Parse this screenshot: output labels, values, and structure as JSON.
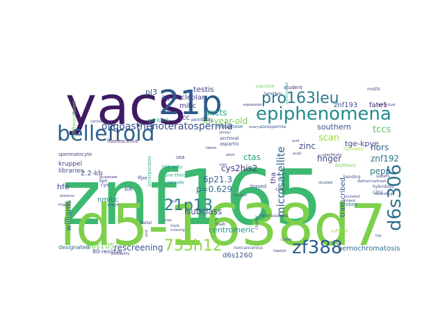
{
  "words": [
    {
      "text": "znf165",
      "color": "#3cb870"
    },
    {
      "text": "ld5-1638d7",
      "color": "#7ed04b"
    },
    {
      "text": "yacs",
      "color": "#3f1a63"
    },
    {
      "text": "21p",
      "color": "#2e5a8a"
    },
    {
      "text": "bellefroid",
      "color": "#2f5f8b"
    },
    {
      "text": "epiphenomena",
      "color": "#238b8d"
    },
    {
      "text": "pro163leu",
      "color": "#2a7a8e"
    },
    {
      "text": "d6s306",
      "color": "#2c6f8e"
    },
    {
      "text": "zf388",
      "color": "#2f5d8c"
    },
    {
      "text": "753h12",
      "color": "#8fd644"
    },
    {
      "text": "21p13",
      "color": "#2d7d8e"
    },
    {
      "text": "microsatellite",
      "color": "#31668e"
    },
    {
      "text": "oligoasthenoteratospermia",
      "color": "#3b4c8b"
    },
    {
      "text": "ag-nucleolar",
      "color": "#414487"
    },
    {
      "text": "testis",
      "color": "#3f4a8a"
    },
    {
      "text": "pl3",
      "color": "#3a538b"
    },
    {
      "text": "mibc",
      "color": "#472d7b"
    },
    {
      "text": "38-year-old",
      "color": "#74d055"
    },
    {
      "text": "ancts",
      "color": "#26a784"
    },
    {
      "text": "znf193",
      "color": "#3c4f8a"
    },
    {
      "text": "fate1",
      "color": "#482475"
    },
    {
      "text": "tccs",
      "color": "#57c665"
    },
    {
      "text": "tge-kpye",
      "color": "#3e4c8a"
    },
    {
      "text": "southern",
      "color": "#3b518b"
    },
    {
      "text": "scan",
      "color": "#98d83e"
    },
    {
      "text": "nors",
      "color": "#33638d"
    },
    {
      "text": "znf192",
      "color": "#2c738e"
    },
    {
      "text": "pepp",
      "color": "#29788e"
    },
    {
      "text": "finger",
      "color": "#3f4788"
    },
    {
      "text": "zinc",
      "color": "#3d4d8a"
    },
    {
      "text": "ctas",
      "color": "#2ba07d"
    },
    {
      "text": "cys2his2",
      "color": "#472f7d"
    },
    {
      "text": "6p21.3",
      "color": "#33638d"
    },
    {
      "text": "p=0.629",
      "color": "#2c718e"
    },
    {
      "text": "subclass",
      "color": "#3b518b"
    },
    {
      "text": "centromeric",
      "color": "#21908d"
    },
    {
      "text": "rescreening",
      "color": "#3b528b"
    },
    {
      "text": "d6s105",
      "color": "#70cf57"
    },
    {
      "text": "d6s1260",
      "color": "#3a548c"
    },
    {
      "text": "hemochromatosis",
      "color": "#2d708e"
    },
    {
      "text": "hfe",
      "color": "#3e4989"
    },
    {
      "text": "2.2-kb",
      "color": "#3b528b"
    },
    {
      "text": "williams",
      "color": "#2f6c8e"
    },
    {
      "text": "nmibc",
      "color": "#26818e"
    },
    {
      "text": "tha",
      "color": "#46327e"
    },
    {
      "text": "transcribed",
      "color": "#3b528b"
    },
    {
      "text": "tcc",
      "color": "#482878"
    },
    {
      "text": "kruppel",
      "color": "#453882"
    },
    {
      "text": "libraries",
      "color": "#3c4f8a"
    },
    {
      "text": "designated",
      "color": "#31688e"
    },
    {
      "text": "80-residue",
      "color": "#3e4a89"
    },
    {
      "text": "biased",
      "color": "#3e4989"
    },
    {
      "text": "cta",
      "color": "#453781"
    },
    {
      "text": "archival",
      "color": "#38598c"
    },
    {
      "text": "metaphase",
      "color": "#31678e"
    },
    {
      "text": "fluorescence",
      "color": "#482173"
    },
    {
      "text": "vaccine",
      "color": "#7ad151"
    },
    {
      "text": "student",
      "color": "#46337f"
    },
    {
      "text": "motifs",
      "color": "#3d4e8a"
    },
    {
      "text": "usa",
      "color": "#472f7d"
    },
    {
      "text": "bik",
      "color": "#3f4889"
    },
    {
      "text": "cys",
      "color": "#3e4a89"
    },
    {
      "text": "ffpe",
      "color": "#3b528b"
    },
    {
      "text": "permitting",
      "color": "#3d4e8a"
    },
    {
      "text": "genbank",
      "color": "#25ab82"
    },
    {
      "text": "spermatocyte",
      "color": "#414487"
    },
    {
      "text": "banding",
      "color": "#3b528b"
    },
    {
      "text": "hybridizes",
      "color": "#3e4c8a"
    },
    {
      "text": "c2h2",
      "color": "#3d4d8a"
    },
    {
      "text": "chromosomes",
      "color": "#3b518b"
    },
    {
      "text": "noncancerous",
      "color": "#3b528b"
    },
    {
      "text": "probability",
      "color": "#433e85"
    },
    {
      "text": "cluster",
      "color": "#3d4e8a"
    },
    {
      "text": "foetal",
      "color": "#3f4788"
    },
    {
      "text": "ksab",
      "color": "#414487"
    },
    {
      "text": "maps",
      "color": "#3d4d8a"
    },
    {
      "text": "rnas",
      "color": "#472d7b"
    },
    {
      "text": "bph",
      "color": "#3e4989"
    },
    {
      "text": "chew",
      "color": "#3b528b"
    },
    {
      "text": "probes",
      "color": "#2c728e"
    },
    {
      "text": "brothers",
      "color": "#7ad151"
    },
    {
      "text": "narrowed",
      "color": "#9fda3a"
    },
    {
      "text": "defined",
      "color": "#3f4889"
    },
    {
      "text": "sisters",
      "color": "#3e4c8a"
    },
    {
      "text": "separating",
      "color": "#3b528b"
    },
    {
      "text": "tdd-only",
      "color": "#20a386"
    },
    {
      "text": "one-third",
      "color": "#27ad81"
    },
    {
      "text": "glutamate",
      "color": "#46327e"
    },
    {
      "text": "distance",
      "color": "#3e4989"
    },
    {
      "text": "spreads",
      "color": "#21918c"
    },
    {
      "text": "suffered",
      "color": "#9bd93c"
    },
    {
      "text": "incorporates",
      "color": "#2fb47c"
    },
    {
      "text": "atest",
      "color": "#3d4d8a"
    },
    {
      "text": "undifferentiated",
      "color": "#7ad151"
    },
    {
      "text": "uses",
      "color": "#3e4a89"
    },
    {
      "text": "expression",
      "color": "#46327e"
    },
    {
      "text": "acid",
      "color": "#3b528b"
    },
    {
      "text": "similar",
      "color": "#3e4989"
    },
    {
      "text": "tables",
      "color": "#3f4788"
    },
    {
      "text": "nucleus",
      "color": "#3b528b"
    },
    {
      "text": "haploid",
      "color": "#3e4a89"
    },
    {
      "text": "aspartic",
      "color": "#3b528b"
    },
    {
      "text": "noxi",
      "color": "#3d4e8a"
    },
    {
      "text": "azoospermia",
      "color": "#3b528b"
    },
    {
      "text": "uncontrolled",
      "color": "#2fb47c"
    },
    {
      "text": "ovary",
      "color": "#3e4989"
    },
    {
      "text": "carried",
      "color": "#3e4c8a"
    },
    {
      "text": "hereditary",
      "color": "#3e4989"
    },
    {
      "text": "doubled",
      "color": "#3b528b"
    },
    {
      "text": "artifactual",
      "color": "#433e85"
    },
    {
      "text": "triple",
      "color": "#3b528b"
    },
    {
      "text": "crossing",
      "color": "#3e4989"
    },
    {
      "text": "linked",
      "color": "#3b528b"
    },
    {
      "text": "stretch",
      "color": "#3e4a89"
    },
    {
      "text": "specifically",
      "color": "#46327e"
    },
    {
      "text": "mutated",
      "color": "#3b528b"
    },
    {
      "text": "hallmark",
      "color": "#3e4989"
    },
    {
      "text": "sex",
      "color": "#3b528b"
    },
    {
      "text": "acad",
      "color": "#3e4989"
    },
    {
      "text": "sci",
      "color": "#3b528b"
    },
    {
      "text": "prot",
      "color": "#3e4989"
    },
    {
      "text": "tag",
      "color": "#3b528b"
    }
  ]
}
